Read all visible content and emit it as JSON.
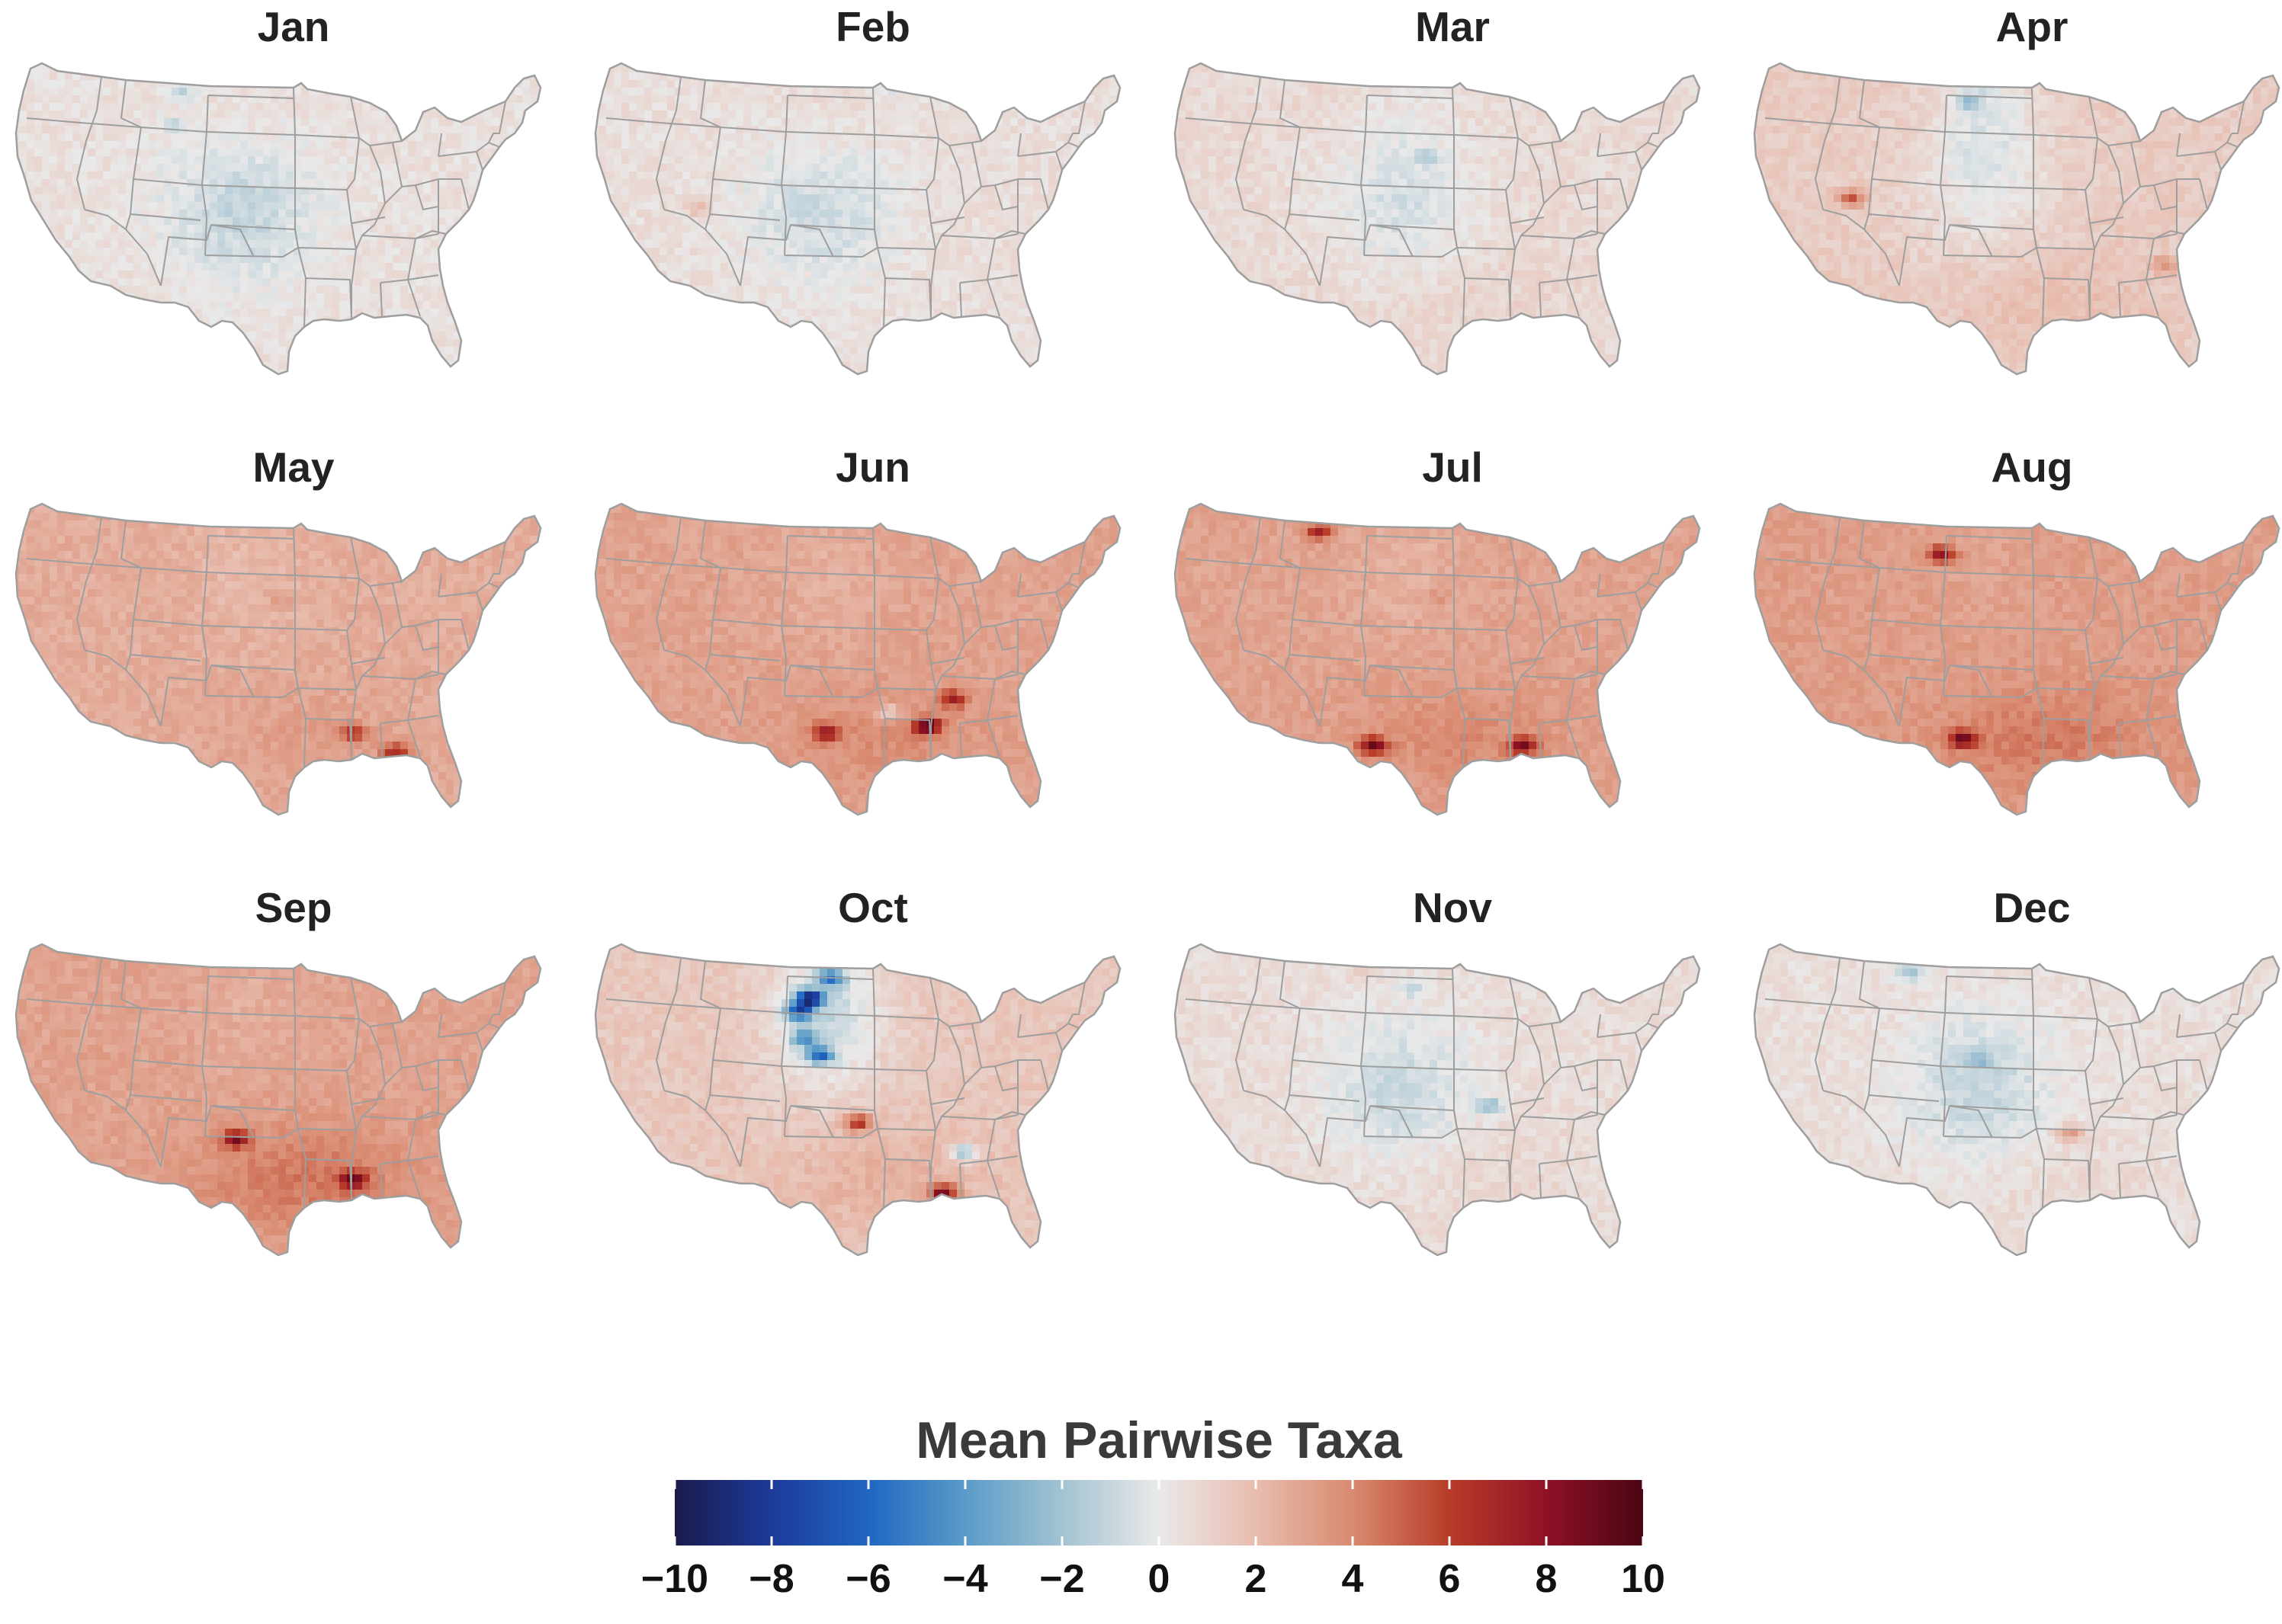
{
  "panels": [
    {
      "label": "Jan",
      "base": 0.4,
      "cool": 1.5,
      "north": 0.2,
      "south": 0.0,
      "spots": [
        [
          0.32,
          0.1,
          -1.6
        ],
        [
          0.48,
          0.08,
          -1.2
        ],
        [
          0.3,
          0.2,
          -1.3
        ]
      ]
    },
    {
      "label": "Feb",
      "base": 0.5,
      "cool": 1.4,
      "north": 0.3,
      "south": 0.0,
      "spots": [
        [
          0.56,
          0.09,
          -1.0
        ],
        [
          0.2,
          0.45,
          1.6
        ]
      ]
    },
    {
      "label": "Mar",
      "base": 0.7,
      "cool": 1.2,
      "north": -0.3,
      "south": 0.3,
      "spots": [
        [
          0.46,
          0.07,
          -1.8
        ],
        [
          0.48,
          0.3,
          -1.3
        ]
      ]
    },
    {
      "label": "Apr",
      "base": 1.3,
      "cool": 0.8,
      "north": -1.5,
      "south": 0.6,
      "spots": [
        [
          0.45,
          0.07,
          -3.5
        ],
        [
          0.19,
          0.42,
          4.5
        ],
        [
          0.41,
          0.13,
          -2.8
        ],
        [
          0.78,
          0.62,
          2.5
        ]
      ]
    },
    {
      "label": "May",
      "base": 2.6,
      "cool": 0.0,
      "north": -0.5,
      "south": 0.6,
      "spots": [
        [
          0.72,
          0.76,
          4.0
        ],
        [
          0.64,
          0.7,
          3.5
        ],
        [
          0.5,
          0.3,
          1.0
        ]
      ]
    },
    {
      "label": "Jun",
      "base": 3.0,
      "cool": 0.0,
      "north": -0.5,
      "south": 0.8,
      "spots": [
        [
          0.63,
          0.68,
          6.5
        ],
        [
          0.56,
          0.64,
          -2.5
        ],
        [
          0.68,
          0.6,
          3.8
        ],
        [
          0.44,
          0.7,
          4.5
        ]
      ]
    },
    {
      "label": "Jul",
      "base": 3.0,
      "cool": 0.0,
      "north": -0.6,
      "south": 0.9,
      "spots": [
        [
          0.38,
          0.74,
          6.0
        ],
        [
          0.66,
          0.74,
          5.5
        ],
        [
          0.28,
          0.1,
          4.0
        ],
        [
          0.5,
          0.3,
          1.0
        ]
      ]
    },
    {
      "label": "Aug",
      "base": 3.2,
      "cool": 0.0,
      "north": -0.2,
      "south": 1.2,
      "spots": [
        [
          0.4,
          0.72,
          5.5
        ],
        [
          0.36,
          0.17,
          5.0
        ]
      ]
    },
    {
      "label": "Sep",
      "base": 3.0,
      "cool": 0.0,
      "north": -0.4,
      "south": 1.5,
      "spots": [
        [
          0.42,
          0.6,
          5.0
        ],
        [
          0.64,
          0.72,
          5.5
        ]
      ]
    },
    {
      "label": "Oct",
      "base": 1.5,
      "cool": 0.2,
      "north": -2.5,
      "south": 1.0,
      "spots": [
        [
          0.41,
          0.18,
          -9.5
        ],
        [
          0.39,
          0.22,
          -7.0
        ],
        [
          0.43,
          0.35,
          -6.0
        ],
        [
          0.45,
          0.12,
          -5.5
        ],
        [
          0.4,
          0.3,
          -4.5
        ],
        [
          0.66,
          0.76,
          6.5
        ],
        [
          0.7,
          0.64,
          -4.0
        ],
        [
          0.5,
          0.55,
          5.0
        ]
      ]
    },
    {
      "label": "Nov",
      "base": 0.6,
      "cool": 1.5,
      "north": 0.0,
      "south": 0.3,
      "spots": [
        [
          0.45,
          0.15,
          -1.5
        ],
        [
          0.6,
          0.5,
          -2.5
        ],
        [
          0.36,
          0.1,
          1.0
        ]
      ]
    },
    {
      "label": "Dec",
      "base": 0.5,
      "cool": 1.6,
      "north": 0.0,
      "south": 0.3,
      "spots": [
        [
          0.3,
          0.1,
          -2.5
        ],
        [
          0.6,
          0.58,
          3.0
        ],
        [
          0.43,
          0.36,
          -2.0
        ]
      ]
    }
  ],
  "legend": {
    "title": "Mean Pairwise Taxa",
    "min": -10,
    "max": 10,
    "ticks": [
      "−10",
      "−8",
      "−6",
      "−4",
      "−2",
      "0",
      "2",
      "4",
      "6",
      "8",
      "10"
    ],
    "tick_values": [
      -10,
      -8,
      -6,
      -4,
      -2,
      0,
      2,
      4,
      6,
      8,
      10
    ],
    "color_stops": [
      "#1a1b4b",
      "#1d3a9a",
      "#1f67c2",
      "#5a9bc8",
      "#a3c3d2",
      "#e9e9e9",
      "#e8bcae",
      "#d98a70",
      "#b83c28",
      "#8f1126",
      "#4a0512"
    ]
  },
  "colors": {
    "state_border": "#9e9e9e",
    "title_text": "#222222"
  }
}
